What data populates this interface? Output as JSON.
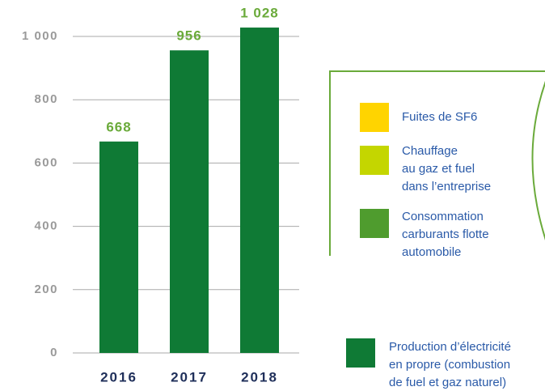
{
  "chart_data": {
    "type": "bar",
    "categories": [
      "2016",
      "2017",
      "2018"
    ],
    "values": [
      668,
      956,
      1028
    ],
    "value_labels": [
      "668",
      "956",
      "1 028"
    ],
    "color": "#0f7a35",
    "ylim": [
      0,
      1000
    ],
    "yticks": [
      0,
      200,
      400,
      600,
      800,
      {
        "value": 1000,
        "label": "1 000"
      }
    ],
    "grid": true,
    "legend": [
      {
        "color": "#ffd400",
        "lines": [
          "Fuites de SF6"
        ]
      },
      {
        "color": "#c4d600",
        "lines": [
          "Chauffage",
          "au gaz et fuel",
          "dans l’entreprise"
        ]
      },
      {
        "color": "#4f9c2e",
        "lines": [
          "Consommation",
          "carburants flotte",
          "automobile"
        ]
      },
      {
        "color": "#0f7a35",
        "lines": [
          "Production d’électricité",
          "en propre (combustion",
          "de fuel et gaz naturel)"
        ]
      }
    ]
  }
}
